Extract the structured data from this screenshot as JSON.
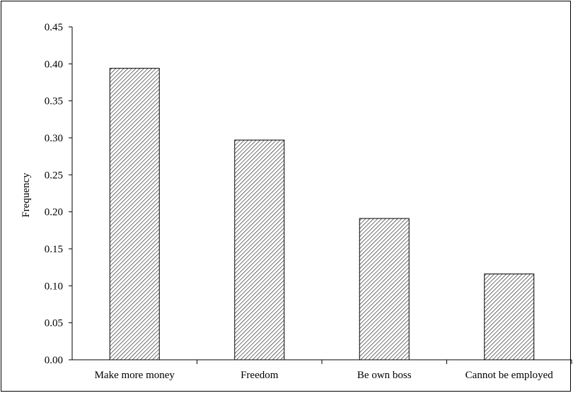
{
  "chart_data": {
    "type": "bar",
    "title": "",
    "xlabel": "",
    "ylabel": "Frequency",
    "categories": [
      "Make more money",
      "Freedom",
      "Be own boss",
      "Cannot be employed"
    ],
    "values": [
      0.394,
      0.297,
      0.191,
      0.116
    ],
    "ylim": [
      0,
      0.45
    ],
    "yticks": [
      "0.00",
      "0.05",
      "0.10",
      "0.15",
      "0.20",
      "0.25",
      "0.30",
      "0.35",
      "0.40",
      "0.45"
    ],
    "grid": false,
    "legend": "none",
    "bar_fill": "diagonal-hatch",
    "bar_color": "#ffffff",
    "edge_color": "#000000"
  }
}
